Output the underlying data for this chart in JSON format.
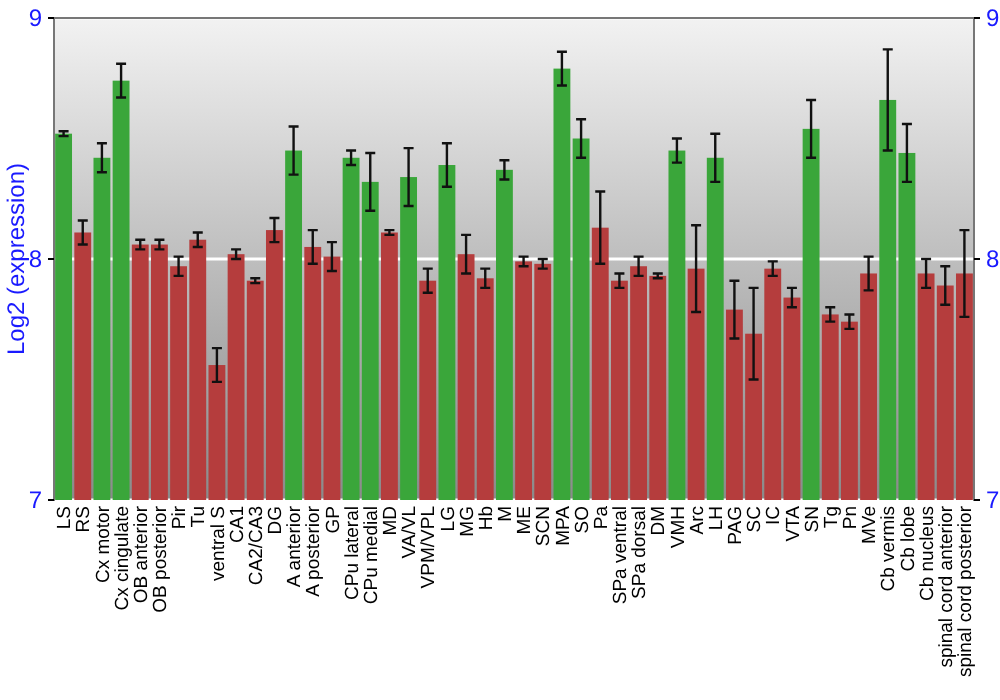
{
  "chart_data": {
    "type": "bar",
    "ylabel": "Log2 (expression)",
    "categories": [
      "LS",
      "RS",
      "Cx motor",
      "Cx cingulate",
      "OB anterior",
      "OB posterior",
      "Pir",
      "Tu",
      "ventral S",
      "CA1",
      "CA2/CA3",
      "DG",
      "A anterior",
      "A posterior",
      "GP",
      "CPu lateral",
      "CPu medial",
      "MD",
      "VA/VL",
      "VPM/VPL",
      "LG",
      "MG",
      "Hb",
      "M",
      "ME",
      "SCN",
      "MPA",
      "SO",
      "Pa",
      "SPa ventral",
      "SPa dorsal",
      "DM",
      "VMH",
      "Arc",
      "LH",
      "PAG",
      "SC",
      "IC",
      "VTA",
      "SN",
      "Tg",
      "Pn",
      "MVe",
      "Cb vermis",
      "Cb lobe",
      "Cb nucleus",
      "spinal cord anterior",
      "spinal cord posterior"
    ],
    "values": [
      8.52,
      8.11,
      8.42,
      8.74,
      8.06,
      8.06,
      7.97,
      8.08,
      7.56,
      8.02,
      7.91,
      8.12,
      8.45,
      8.05,
      8.01,
      8.42,
      8.32,
      8.11,
      8.34,
      7.91,
      8.39,
      8.02,
      7.92,
      8.37,
      7.99,
      7.98,
      8.79,
      8.5,
      8.13,
      7.91,
      7.97,
      7.93,
      8.45,
      7.96,
      8.42,
      7.79,
      7.69,
      7.96,
      7.84,
      8.54,
      7.77,
      7.74,
      7.94,
      8.66,
      8.44,
      7.94,
      7.89,
      7.94
    ],
    "errors": [
      0.01,
      0.05,
      0.06,
      0.07,
      0.02,
      0.02,
      0.04,
      0.03,
      0.07,
      0.02,
      0.01,
      0.05,
      0.1,
      0.07,
      0.06,
      0.03,
      0.12,
      0.01,
      0.12,
      0.05,
      0.09,
      0.08,
      0.04,
      0.04,
      0.02,
      0.02,
      0.07,
      0.08,
      0.15,
      0.03,
      0.04,
      0.01,
      0.05,
      0.18,
      0.1,
      0.12,
      0.19,
      0.03,
      0.04,
      0.12,
      0.03,
      0.03,
      0.07,
      0.21,
      0.12,
      0.06,
      0.08,
      0.18
    ],
    "colors": [
      "#3aa63a",
      "#b53d3d",
      "#3aa63a",
      "#3aa63a",
      "#b53d3d",
      "#b53d3d",
      "#b53d3d",
      "#b53d3d",
      "#b53d3d",
      "#b53d3d",
      "#b53d3d",
      "#b53d3d",
      "#3aa63a",
      "#b53d3d",
      "#b53d3d",
      "#3aa63a",
      "#3aa63a",
      "#b53d3d",
      "#3aa63a",
      "#b53d3d",
      "#3aa63a",
      "#b53d3d",
      "#b53d3d",
      "#3aa63a",
      "#b53d3d",
      "#b53d3d",
      "#3aa63a",
      "#3aa63a",
      "#b53d3d",
      "#b53d3d",
      "#b53d3d",
      "#b53d3d",
      "#3aa63a",
      "#b53d3d",
      "#3aa63a",
      "#b53d3d",
      "#b53d3d",
      "#b53d3d",
      "#b53d3d",
      "#3aa63a",
      "#b53d3d",
      "#b53d3d",
      "#b53d3d",
      "#3aa63a",
      "#3aa63a",
      "#b53d3d",
      "#b53d3d",
      "#b53d3d"
    ],
    "ylim": [
      7,
      9
    ],
    "yticks": [
      7,
      8,
      9
    ],
    "y2lim": [
      7,
      9
    ],
    "y2ticks": [
      7,
      8,
      9
    ],
    "grid": "y"
  }
}
